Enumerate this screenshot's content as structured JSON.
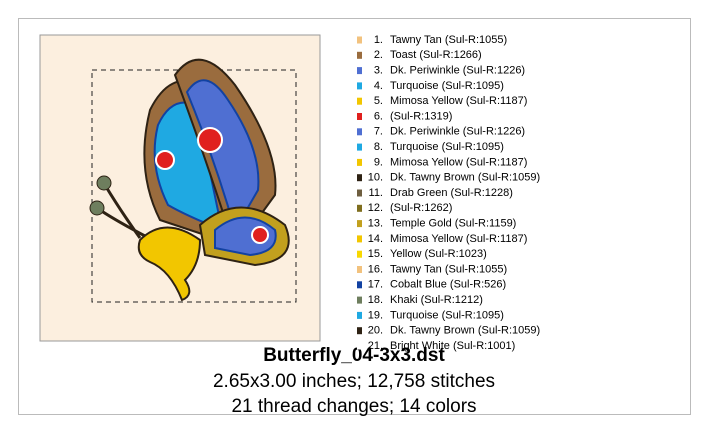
{
  "design": {
    "title": "Butterfly_04-3x3.dst",
    "size_line": "2.65x3.00 inches; 12,758 stitches",
    "changes_line": "21 thread changes; 14 colors",
    "threads": [
      {
        "number": "1.",
        "name": "Tawny Tan (Sul-R:1055)",
        "color": "#f2c27e"
      },
      {
        "number": "2.",
        "name": "Toast (Sul-R:1266)",
        "color": "#9a6c3e"
      },
      {
        "number": "3.",
        "name": "Dk. Periwinkle (Sul-R:1226)",
        "color": "#4f6fd2"
      },
      {
        "number": "4.",
        "name": "Turquoise (Sul-R:1095)",
        "color": "#1fa9e2"
      },
      {
        "number": "5.",
        "name": "Mimosa Yellow (Sul-R:1187)",
        "color": "#f2c600"
      },
      {
        "number": "6.",
        "name": "(Sul-R:1319)",
        "color": "#e0201e"
      },
      {
        "number": "7.",
        "name": "Dk. Periwinkle (Sul-R:1226)",
        "color": "#4f6fd2"
      },
      {
        "number": "8.",
        "name": "Turquoise (Sul-R:1095)",
        "color": "#1fa9e2"
      },
      {
        "number": "9.",
        "name": "Mimosa Yellow (Sul-R:1187)",
        "color": "#f2c600"
      },
      {
        "number": "10.",
        "name": "Dk. Tawny Brown (Sul-R:1059)",
        "color": "#2e2214"
      },
      {
        "number": "11.",
        "name": "Drab Green (Sul-R:1228)",
        "color": "#6e5e40"
      },
      {
        "number": "12.",
        "name": "(Sul-R:1262)",
        "color": "#7f6e1e"
      },
      {
        "number": "13.",
        "name": "Temple Gold (Sul-R:1159)",
        "color": "#c2a01e"
      },
      {
        "number": "14.",
        "name": "Mimosa Yellow (Sul-R:1187)",
        "color": "#f2c600"
      },
      {
        "number": "15.",
        "name": "Yellow (Sul-R:1023)",
        "color": "#f8d800"
      },
      {
        "number": "16.",
        "name": "Tawny Tan (Sul-R:1055)",
        "color": "#f2c27e"
      },
      {
        "number": "17.",
        "name": "Cobalt Blue (Sul-R:526)",
        "color": "#1242a2"
      },
      {
        "number": "18.",
        "name": "Khaki (Sul-R:1212)",
        "color": "#6e7e5e"
      },
      {
        "number": "19.",
        "name": "Turquoise (Sul-R:1095)",
        "color": "#1fa9e2"
      },
      {
        "number": "20.",
        "name": "Dk. Tawny Brown (Sul-R:1059)",
        "color": "#2e2214"
      },
      {
        "number": "21.",
        "name": "Bright White (Sul-R:1001)",
        "color": "#ffffff"
      }
    ]
  }
}
